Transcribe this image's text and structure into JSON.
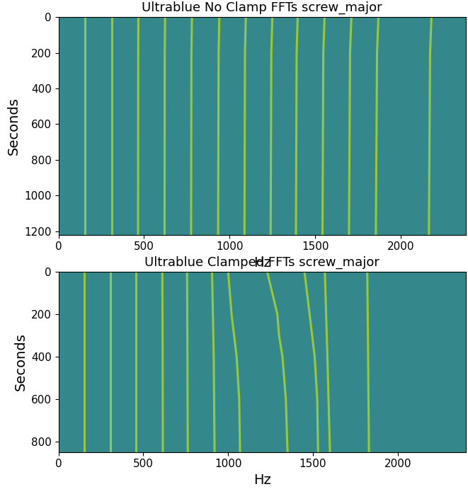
{
  "chart_data": [
    {
      "type": "line",
      "title": "Ultrablue No Clamp FFTs screw_major",
      "x_label": "Hz",
      "y_label": "Seconds",
      "xlim": [
        0,
        2380
      ],
      "ylim": [
        1220,
        0
      ],
      "xticks": [
        0,
        500,
        1000,
        1500,
        2000
      ],
      "yticks": [
        0,
        200,
        400,
        600,
        800,
        1000,
        1200
      ],
      "color": "#b5de2b",
      "series": [
        {
          "x": [
            155,
            155,
            155
          ],
          "y": [
            0,
            200,
            1220
          ]
        },
        {
          "x": [
            310,
            310,
            310
          ],
          "y": [
            0,
            200,
            1220
          ]
        },
        {
          "x": [
            467,
            466,
            465
          ],
          "y": [
            0,
            200,
            1220
          ]
        },
        {
          "x": [
            623,
            621,
            620
          ],
          "y": [
            0,
            200,
            1220
          ]
        },
        {
          "x": [
            780,
            777,
            775
          ],
          "y": [
            0,
            200,
            1220
          ]
        },
        {
          "x": [
            940,
            936,
            933
          ],
          "y": [
            0,
            200,
            1220
          ]
        },
        {
          "x": [
            1095,
            1090,
            1087
          ],
          "y": [
            0,
            200,
            1220
          ]
        },
        {
          "x": [
            1250,
            1244,
            1240
          ],
          "y": [
            0,
            200,
            1220
          ]
        },
        {
          "x": [
            1398,
            1392,
            1388
          ],
          "y": [
            0,
            200,
            1220
          ]
        },
        {
          "x": [
            1555,
            1548,
            1543
          ],
          "y": [
            0,
            200,
            1220
          ]
        },
        {
          "x": [
            1712,
            1704,
            1698
          ],
          "y": [
            0,
            200,
            1220
          ]
        },
        {
          "x": [
            1870,
            1862,
            1855
          ],
          "y": [
            0,
            200,
            1220
          ]
        },
        {
          "x": [
            2180,
            2172,
            2165
          ],
          "y": [
            0,
            200,
            1220
          ]
        }
      ]
    },
    {
      "type": "line",
      "title": "Ultrablue Clamped FFTs screw_major",
      "x_label": "Hz",
      "y_label": "Seconds",
      "xlim": [
        0,
        2400
      ],
      "ylim": [
        850,
        0
      ],
      "xticks": [
        0,
        500,
        1000,
        1500,
        2000
      ],
      "yticks": [
        0,
        200,
        400,
        600,
        800
      ],
      "color": "#b5de2b",
      "series": [
        {
          "x": [
            150,
            150,
            150
          ],
          "y": [
            0,
            400,
            850
          ]
        },
        {
          "x": [
            305,
            305,
            305
          ],
          "y": [
            0,
            400,
            850
          ]
        },
        {
          "x": [
            458,
            458,
            458
          ],
          "y": [
            0,
            400,
            850
          ]
        },
        {
          "x": [
            612,
            614,
            615
          ],
          "y": [
            0,
            400,
            850
          ]
        },
        {
          "x": [
            758,
            760,
            762
          ],
          "y": [
            0,
            400,
            850
          ]
        },
        {
          "x": [
            905,
            915,
            920
          ],
          "y": [
            0,
            400,
            850
          ]
        },
        {
          "x": [
            1000,
            1020,
            1050,
            1065,
            1070
          ],
          "y": [
            0,
            200,
            400,
            600,
            850
          ]
        },
        {
          "x": [
            1230,
            1260,
            1290,
            1300,
            1320,
            1340,
            1350
          ],
          "y": [
            0,
            100,
            200,
            300,
            400,
            600,
            850
          ]
        },
        {
          "x": [
            1450,
            1480,
            1510,
            1525,
            1530
          ],
          "y": [
            0,
            200,
            400,
            600,
            850
          ]
        },
        {
          "x": [
            1570,
            1585,
            1600
          ],
          "y": [
            0,
            400,
            850
          ]
        },
        {
          "x": [
            1820,
            1825,
            1830
          ],
          "y": [
            0,
            400,
            850
          ]
        }
      ]
    }
  ]
}
